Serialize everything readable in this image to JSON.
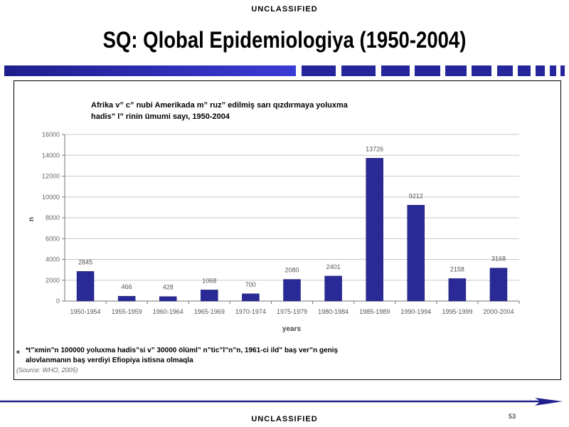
{
  "header": {
    "classification": "UNCLASSIFIED",
    "title": "SQ: Qlobal Epidemiologiya  (1950-2004)"
  },
  "footer": {
    "classification": "UNCLASSIFIED",
    "page_number": "53"
  },
  "colors": {
    "bar_fill": "#2a2a96",
    "bar_stroke": "#1a1a70",
    "title_bar_dark": "#1e1e8c",
    "title_bar_light": "#3b3bd6",
    "grid": "#c8c8c8"
  },
  "chart_data": {
    "type": "bar",
    "title_lines": [
      "Afrika v” c” nubi Amerikada m” ruz”  edilmiş sarı qızdırmaya yoluxma",
      "hadis” l” rinin ümumi sayı, 1950-2004"
    ],
    "xlabel": "years",
    "ylabel": "n",
    "ylim": [
      0,
      16000
    ],
    "yticks": [
      0,
      2000,
      4000,
      6000,
      8000,
      10000,
      12000,
      14000,
      16000
    ],
    "grid": true,
    "categories": [
      "1950-1954",
      "1955-1959",
      "1960-1964",
      "1965-1969",
      "1970-1974",
      "1975-1979",
      "1980-1984",
      "1985-1989",
      "1990-1994",
      "1995-1999",
      "2000-2004"
    ],
    "values": [
      2845,
      466,
      428,
      1068,
      700,
      2080,
      2401,
      13726,
      9212,
      2158,
      3168
    ],
    "value_labels": [
      "2845",
      "466",
      "428",
      "1068",
      "700",
      "2080",
      "2401",
      "13726",
      "9212",
      "2158",
      "3168"
    ],
    "footnote_lines": [
      "*t”xmin”n 100000 yoluxma hadis”si v” 30000 ölüml” n”tic”l”n”n, 1961-ci ild” baş ver”n geniş",
      "alovlanmanın baş verdiyi Efiopiya istisna olmaqla"
    ],
    "source": "(Source: WHO, 2005)"
  }
}
